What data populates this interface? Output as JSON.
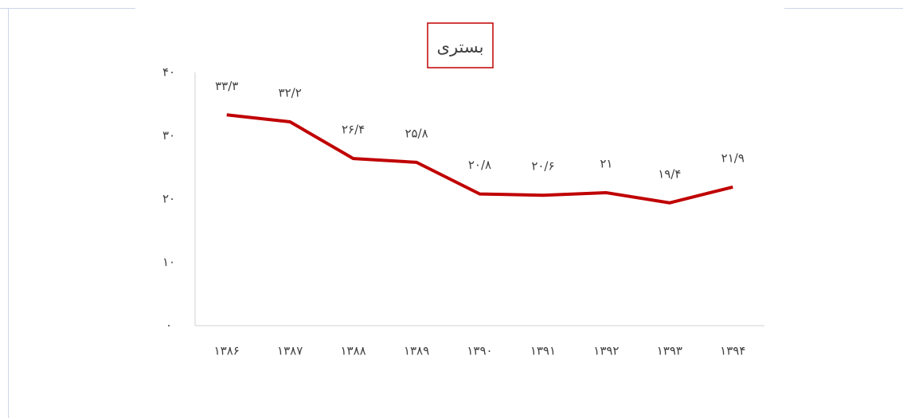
{
  "chart_data": {
    "type": "line",
    "title": "بستری",
    "categories": [
      "۱۳۸۶",
      "۱۳۸۷",
      "۱۳۸۸",
      "۱۳۸۹",
      "۱۳۹۰",
      "۱۳۹۱",
      "۱۳۹۲",
      "۱۳۹۳",
      "۱۳۹۴"
    ],
    "series": [
      {
        "color": "#c00000",
        "values": [
          33.3,
          32.2,
          26.4,
          25.8,
          20.8,
          20.6,
          21,
          19.4,
          21.9
        ],
        "value_labels": [
          "۳۳/۳",
          "۳۲/۲",
          "۲۶/۴",
          "۲۵/۸",
          "۲۰/۸",
          "۲۰/۶",
          "۲۱",
          "۱۹/۴",
          "۲۱/۹"
        ]
      }
    ],
    "ylim": [
      0,
      40
    ],
    "yticks": [
      {
        "value": 0,
        "label": "۰"
      },
      {
        "value": 10,
        "label": "۱۰"
      },
      {
        "value": 20,
        "label": "۲۰"
      },
      {
        "value": 30,
        "label": "۳۰"
      },
      {
        "value": 40,
        "label": "۴۰"
      }
    ],
    "grid": false
  }
}
